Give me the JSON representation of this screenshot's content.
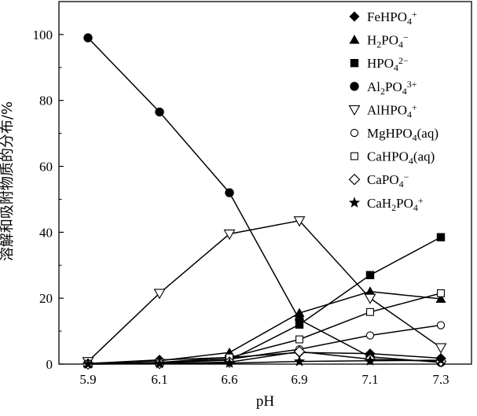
{
  "chart_data": {
    "type": "line",
    "title": "",
    "xlabel": "pH",
    "ylabel": "溶解和吸附物质的分布/%",
    "categories": [
      "5.9",
      "6.1",
      "6.6",
      "6.9",
      "7.1",
      "7.3"
    ],
    "ylim": [
      0,
      110
    ],
    "yticks": [
      0,
      20,
      40,
      60,
      80,
      100
    ],
    "grid": false,
    "legend_position": "top-right",
    "series": [
      {
        "name": "FeHPO4+",
        "label_parts": [
          {
            "t": "FeHPO"
          },
          {
            "t": "4",
            "sub": true
          },
          {
            "t": "+",
            "sup": true
          }
        ],
        "marker": "diamond-filled",
        "values": [
          0.2,
          1.3,
          2.0,
          3.5,
          3.2,
          1.8
        ]
      },
      {
        "name": "H2PO4-",
        "label_parts": [
          {
            "t": "H"
          },
          {
            "t": "2",
            "sub": true
          },
          {
            "t": "PO"
          },
          {
            "t": "4",
            "sub": true
          },
          {
            "t": "−",
            "sup": true
          }
        ],
        "marker": "triangle-filled",
        "values": [
          0.2,
          1.0,
          3.5,
          15.5,
          22.0,
          19.8
        ]
      },
      {
        "name": "HPO4 2-",
        "label_parts": [
          {
            "t": "HPO"
          },
          {
            "t": "4",
            "sub": true
          },
          {
            "t": "2−",
            "sup": true
          }
        ],
        "marker": "square-filled",
        "values": [
          0.1,
          0.4,
          1.2,
          12.0,
          27.0,
          38.5
        ]
      },
      {
        "name": "Al2PO4 3+",
        "label_parts": [
          {
            "t": "Al"
          },
          {
            "t": "2",
            "sub": true
          },
          {
            "t": "PO"
          },
          {
            "t": "4",
            "sub": true
          },
          {
            "t": "3+",
            "sup": true
          }
        ],
        "marker": "circle-filled",
        "values": [
          99.0,
          76.5,
          52.0,
          13.5,
          2.2,
          0.5
        ]
      },
      {
        "name": "AlHPO4+",
        "label_parts": [
          {
            "t": "AlHPO"
          },
          {
            "t": "4",
            "sub": true
          },
          {
            "t": "+",
            "sup": true
          }
        ],
        "marker": "triangle-down-open",
        "values": [
          0.8,
          21.5,
          39.5,
          43.5,
          20.0,
          5.0
        ]
      },
      {
        "name": "MgHPO4(aq)",
        "label_parts": [
          {
            "t": "MgHPO"
          },
          {
            "t": "4",
            "sub": true
          },
          {
            "t": "(aq)"
          }
        ],
        "marker": "circle-open",
        "values": [
          0.1,
          0.4,
          1.5,
          4.5,
          8.7,
          11.8
        ]
      },
      {
        "name": "CaHPO4(aq)",
        "label_parts": [
          {
            "t": "CaHPO"
          },
          {
            "t": "4",
            "sub": true
          },
          {
            "t": "(aq)"
          }
        ],
        "marker": "square-open",
        "values": [
          0.1,
          0.5,
          2.0,
          7.5,
          15.8,
          21.5
        ]
      },
      {
        "name": "CaPO4-",
        "label_parts": [
          {
            "t": "CaPO"
          },
          {
            "t": "4",
            "sub": true
          },
          {
            "t": "−",
            "sup": true
          }
        ],
        "marker": "diamond-open",
        "values": [
          0.0,
          0.2,
          0.6,
          3.8,
          1.5,
          0.8
        ]
      },
      {
        "name": "CaH2PO4+",
        "label_parts": [
          {
            "t": "CaH"
          },
          {
            "t": "2",
            "sub": true
          },
          {
            "t": "PO"
          },
          {
            "t": "4",
            "sub": true
          },
          {
            "t": "+",
            "sup": true
          }
        ],
        "marker": "star-filled",
        "values": [
          0.0,
          0.1,
          0.3,
          0.8,
          1.0,
          1.2
        ]
      }
    ]
  }
}
